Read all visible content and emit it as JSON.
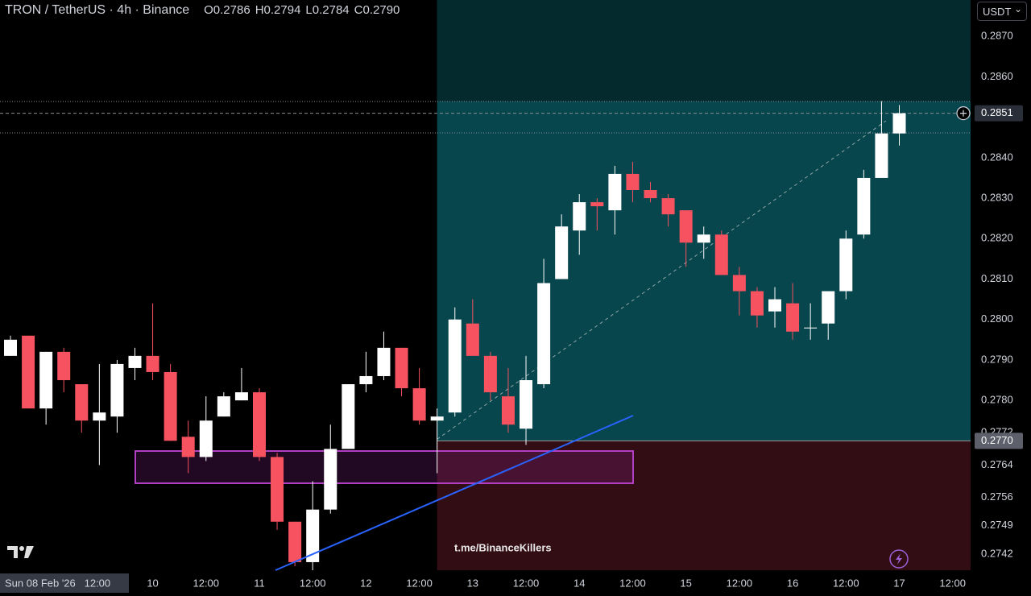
{
  "chart_data": {
    "type": "candlestick",
    "title": "TRON / TetherUS · 4h · Binance",
    "ohlc_legend": [
      {
        "key": "O",
        "value": "0.2786"
      },
      {
        "key": "H",
        "value": "0.2794"
      },
      {
        "key": "L",
        "value": "0.2784"
      },
      {
        "key": "C",
        "value": "0.2790"
      }
    ],
    "currency": "USDT",
    "categories": [
      null,
      null,
      null,
      null,
      null,
      null,
      null,
      null,
      "10",
      null,
      null,
      "12:00",
      null,
      null,
      "11",
      null,
      null,
      "12:00",
      null,
      null,
      "12",
      null,
      null,
      "12:00",
      null,
      null,
      "13",
      null,
      null,
      "12:00",
      null,
      null,
      "14",
      null,
      null,
      "12:00",
      null,
      null,
      "15",
      null,
      null,
      "12:00",
      null,
      null,
      "16",
      null,
      null,
      "12:00",
      null,
      null,
      "17",
      null,
      null,
      "12:00"
    ],
    "ohlc": {
      "open": [
        0.2791,
        0.2796,
        0.2778,
        0.2792,
        0.2784,
        0.2775,
        0.2776,
        0.2788,
        0.2791,
        0.2787,
        0.2771,
        0.2766,
        0.2776,
        0.278,
        0.2782,
        0.2766,
        0.275,
        0.274,
        0.2753,
        0.2768,
        0.2784,
        0.2786,
        0.2793,
        0.2783,
        0.2775,
        0.2777,
        0.2799,
        0.2791,
        0.2781,
        0.2773,
        0.2784,
        0.281,
        0.2822,
        0.2829,
        0.2827,
        0.2836,
        0.2832,
        0.283,
        0.2827,
        0.2819,
        0.2821,
        0.2811,
        0.2807,
        0.2802,
        0.2804,
        0.2798,
        0.2799,
        0.2807,
        0.2821,
        0.2835,
        0.2846,
        null,
        null,
        null
      ],
      "high": [
        0.2796,
        0.2796,
        0.2792,
        0.2793,
        0.2784,
        0.2789,
        0.279,
        0.2793,
        0.2804,
        0.2789,
        0.2775,
        0.2781,
        0.2782,
        0.2788,
        0.2783,
        0.2767,
        0.275,
        0.276,
        0.2774,
        0.2784,
        0.2792,
        0.2797,
        0.2793,
        0.2788,
        0.2778,
        0.2803,
        0.2805,
        0.2792,
        0.2788,
        0.2791,
        0.2815,
        0.2826,
        0.2831,
        0.283,
        0.2838,
        0.2839,
        0.2834,
        0.2831,
        0.2827,
        0.2823,
        0.2822,
        0.2813,
        0.2808,
        0.2808,
        0.2809,
        0.2804,
        0.2807,
        0.2822,
        0.2837,
        0.2854,
        0.2853,
        null,
        null,
        null
      ],
      "low": [
        0.2791,
        0.2778,
        0.2774,
        0.2782,
        0.2772,
        0.2764,
        0.2772,
        0.2785,
        0.2785,
        0.277,
        0.2762,
        0.2765,
        0.2776,
        0.278,
        0.2765,
        0.2748,
        0.2739,
        0.2738,
        0.2752,
        0.2768,
        0.2782,
        0.2785,
        0.2781,
        0.2774,
        0.2762,
        0.2776,
        0.2791,
        0.278,
        0.2772,
        0.2769,
        0.2783,
        0.281,
        0.2816,
        0.2822,
        0.2821,
        0.2829,
        0.2829,
        0.2823,
        0.2813,
        0.2815,
        0.2811,
        0.2801,
        0.2798,
        0.2798,
        0.2795,
        0.2795,
        0.2795,
        0.2805,
        0.282,
        0.2835,
        0.2843,
        null,
        null,
        null
      ],
      "close": [
        0.2795,
        0.2778,
        0.2792,
        0.2785,
        0.2775,
        0.2777,
        0.2789,
        0.2791,
        0.2787,
        0.277,
        0.2766,
        0.2775,
        0.2781,
        0.2782,
        0.2766,
        0.275,
        0.274,
        0.2753,
        0.2768,
        0.2784,
        0.2786,
        0.2793,
        0.2783,
        0.2775,
        0.2776,
        0.28,
        0.2791,
        0.2782,
        0.2774,
        0.2785,
        0.2809,
        0.2823,
        0.2829,
        0.2828,
        0.2836,
        0.2832,
        0.283,
        0.2826,
        0.2819,
        0.2821,
        0.2811,
        0.2807,
        0.2801,
        0.2805,
        0.2797,
        0.2798,
        0.2807,
        0.282,
        0.2835,
        0.2846,
        0.2851,
        null,
        null,
        null
      ]
    },
    "up_color": "#ffffff",
    "down_color": "#f7525f",
    "ylim": [
      0.2738,
      0.2879
    ],
    "yticks": [
      {
        "value": 0.287,
        "label": "0.2870"
      },
      {
        "value": 0.286,
        "label": "0.2860"
      },
      {
        "value": 0.284,
        "label": "0.2840"
      },
      {
        "value": 0.283,
        "label": "0.2830"
      },
      {
        "value": 0.282,
        "label": "0.2820"
      },
      {
        "value": 0.281,
        "label": "0.2810"
      },
      {
        "value": 0.28,
        "label": "0.2800"
      },
      {
        "value": 0.279,
        "label": "0.2790"
      },
      {
        "value": 0.278,
        "label": "0.2780"
      },
      0.2772,
      0.2764,
      0.2756,
      0.2749,
      0.2742
    ],
    "grid": false,
    "current_price": {
      "value": 0.2851,
      "label": "0.2851"
    },
    "entry_price": {
      "value": 0.277,
      "label": "0.2770"
    },
    "cursor_label": "Sun 08 Feb '26   12:00",
    "watermark": "t.me/BinanceKillers"
  }
}
